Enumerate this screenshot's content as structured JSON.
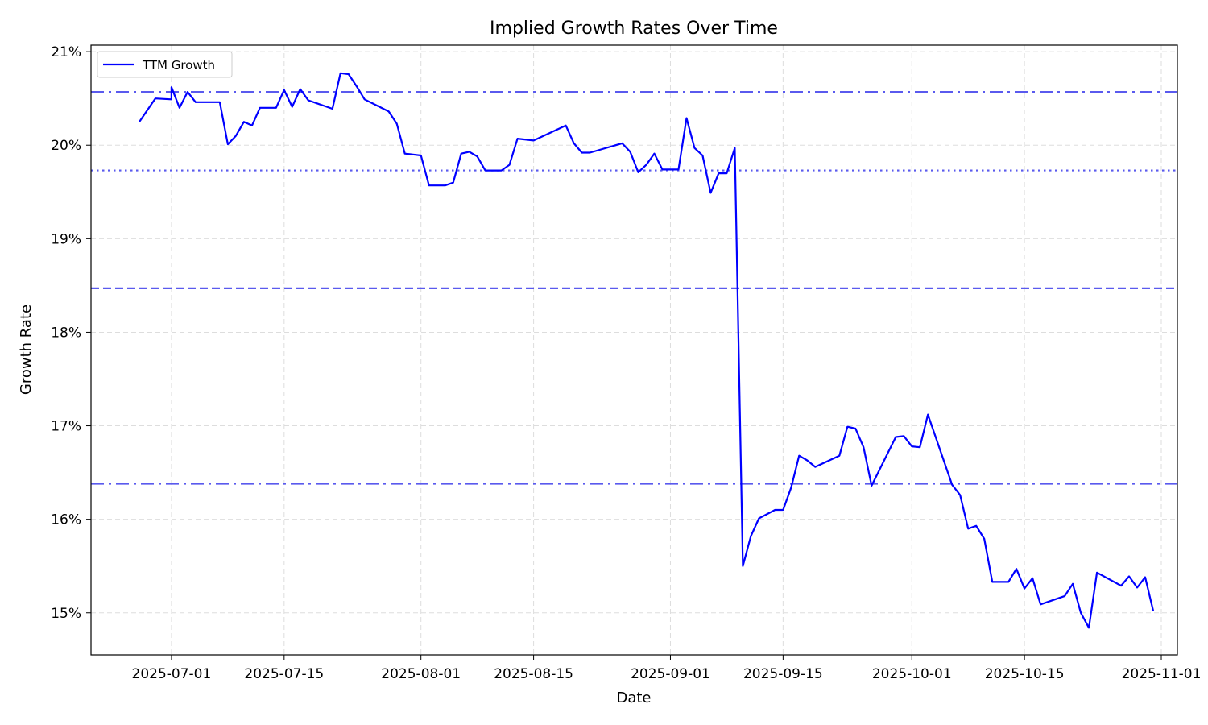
{
  "chart_data": {
    "type": "line",
    "title": "Implied Growth Rates Over Time",
    "xlabel": "Date",
    "ylabel": "Growth Rate",
    "xlim": [
      "2025-06-21",
      "2025-11-03"
    ],
    "ylim": [
      14.55,
      21.07
    ],
    "x_ticks": [
      "2025-07-01",
      "2025-07-15",
      "2025-08-01",
      "2025-08-15",
      "2025-09-01",
      "2025-09-15",
      "2025-10-01",
      "2025-10-15",
      "2025-11-01"
    ],
    "y_ticks": [
      15,
      16,
      17,
      18,
      19,
      20,
      21
    ],
    "y_tick_labels": [
      "15%",
      "16%",
      "17%",
      "18%",
      "19%",
      "20%",
      "21%"
    ],
    "grid": true,
    "legend_position": "top-left",
    "colors": {
      "series": "#0000ff",
      "reference": "#5a5aee",
      "grid": "#dddddd"
    },
    "reference_lines": [
      {
        "y": 20.57,
        "style": "dashdot"
      },
      {
        "y": 19.73,
        "style": "dotted"
      },
      {
        "y": 18.47,
        "style": "dashed"
      },
      {
        "y": 16.38,
        "style": "dashdot"
      }
    ],
    "series": [
      {
        "name": "TTM Growth",
        "points": [
          [
            "2025-06-27",
            20.25
          ],
          [
            "2025-06-29",
            20.5
          ],
          [
            "2025-07-01",
            20.49
          ],
          [
            "2025-07-01",
            20.62
          ],
          [
            "2025-07-02",
            20.4
          ],
          [
            "2025-07-03",
            20.57
          ],
          [
            "2025-07-04",
            20.46
          ],
          [
            "2025-07-07",
            20.46
          ],
          [
            "2025-07-08",
            20.01
          ],
          [
            "2025-07-09",
            20.1
          ],
          [
            "2025-07-10",
            20.25
          ],
          [
            "2025-07-11",
            20.21
          ],
          [
            "2025-07-12",
            20.4
          ],
          [
            "2025-07-14",
            20.4
          ],
          [
            "2025-07-15",
            20.59
          ],
          [
            "2025-07-16",
            20.41
          ],
          [
            "2025-07-17",
            20.6
          ],
          [
            "2025-07-18",
            20.48
          ],
          [
            "2025-07-21",
            20.39
          ],
          [
            "2025-07-22",
            20.77
          ],
          [
            "2025-07-23",
            20.76
          ],
          [
            "2025-07-24",
            20.63
          ],
          [
            "2025-07-25",
            20.49
          ],
          [
            "2025-07-28",
            20.36
          ],
          [
            "2025-07-29",
            20.23
          ],
          [
            "2025-07-30",
            19.91
          ],
          [
            "2025-07-31",
            19.9
          ],
          [
            "2025-08-01",
            19.89
          ],
          [
            "2025-08-02",
            19.57
          ],
          [
            "2025-08-04",
            19.57
          ],
          [
            "2025-08-05",
            19.6
          ],
          [
            "2025-08-06",
            19.91
          ],
          [
            "2025-08-07",
            19.93
          ],
          [
            "2025-08-08",
            19.88
          ],
          [
            "2025-08-09",
            19.73
          ],
          [
            "2025-08-11",
            19.73
          ],
          [
            "2025-08-12",
            19.79
          ],
          [
            "2025-08-13",
            20.07
          ],
          [
            "2025-08-15",
            20.05
          ],
          [
            "2025-08-19",
            20.21
          ],
          [
            "2025-08-20",
            20.02
          ],
          [
            "2025-08-21",
            19.92
          ],
          [
            "2025-08-22",
            19.92
          ],
          [
            "2025-08-26",
            20.02
          ],
          [
            "2025-08-27",
            19.93
          ],
          [
            "2025-08-28",
            19.71
          ],
          [
            "2025-08-29",
            19.79
          ],
          [
            "2025-08-30",
            19.91
          ],
          [
            "2025-08-31",
            19.74
          ],
          [
            "2025-09-01",
            19.74
          ],
          [
            "2025-09-02",
            19.74
          ],
          [
            "2025-09-03",
            20.29
          ],
          [
            "2025-09-04",
            19.97
          ],
          [
            "2025-09-05",
            19.89
          ],
          [
            "2025-09-06",
            19.49
          ],
          [
            "2025-09-07",
            19.7
          ],
          [
            "2025-09-08",
            19.7
          ],
          [
            "2025-09-09",
            19.97
          ],
          [
            "2025-09-10",
            15.5
          ],
          [
            "2025-09-11",
            15.82
          ],
          [
            "2025-09-12",
            16.01
          ],
          [
            "2025-09-14",
            16.1
          ],
          [
            "2025-09-15",
            16.1
          ],
          [
            "2025-09-16",
            16.34
          ],
          [
            "2025-09-17",
            16.68
          ],
          [
            "2025-09-18",
            16.63
          ],
          [
            "2025-09-19",
            16.56
          ],
          [
            "2025-09-22",
            16.68
          ],
          [
            "2025-09-23",
            16.99
          ],
          [
            "2025-09-24",
            16.97
          ],
          [
            "2025-09-25",
            16.77
          ],
          [
            "2025-09-26",
            16.36
          ],
          [
            "2025-09-29",
            16.88
          ],
          [
            "2025-09-30",
            16.89
          ],
          [
            "2025-10-01",
            16.78
          ],
          [
            "2025-10-02",
            16.77
          ],
          [
            "2025-10-03",
            17.12
          ],
          [
            "2025-10-06",
            16.37
          ],
          [
            "2025-10-07",
            16.26
          ],
          [
            "2025-10-08",
            15.9
          ],
          [
            "2025-10-09",
            15.93
          ],
          [
            "2025-10-10",
            15.79
          ],
          [
            "2025-10-11",
            15.33
          ],
          [
            "2025-10-13",
            15.33
          ],
          [
            "2025-10-14",
            15.47
          ],
          [
            "2025-10-15",
            15.26
          ],
          [
            "2025-10-16",
            15.37
          ],
          [
            "2025-10-17",
            15.09
          ],
          [
            "2025-10-20",
            15.18
          ],
          [
            "2025-10-21",
            15.31
          ],
          [
            "2025-10-22",
            15.0
          ],
          [
            "2025-10-23",
            14.84
          ],
          [
            "2025-10-24",
            15.43
          ],
          [
            "2025-10-27",
            15.29
          ],
          [
            "2025-10-28",
            15.39
          ],
          [
            "2025-10-29",
            15.27
          ],
          [
            "2025-10-30",
            15.38
          ],
          [
            "2025-10-31",
            15.02
          ]
        ]
      }
    ]
  }
}
